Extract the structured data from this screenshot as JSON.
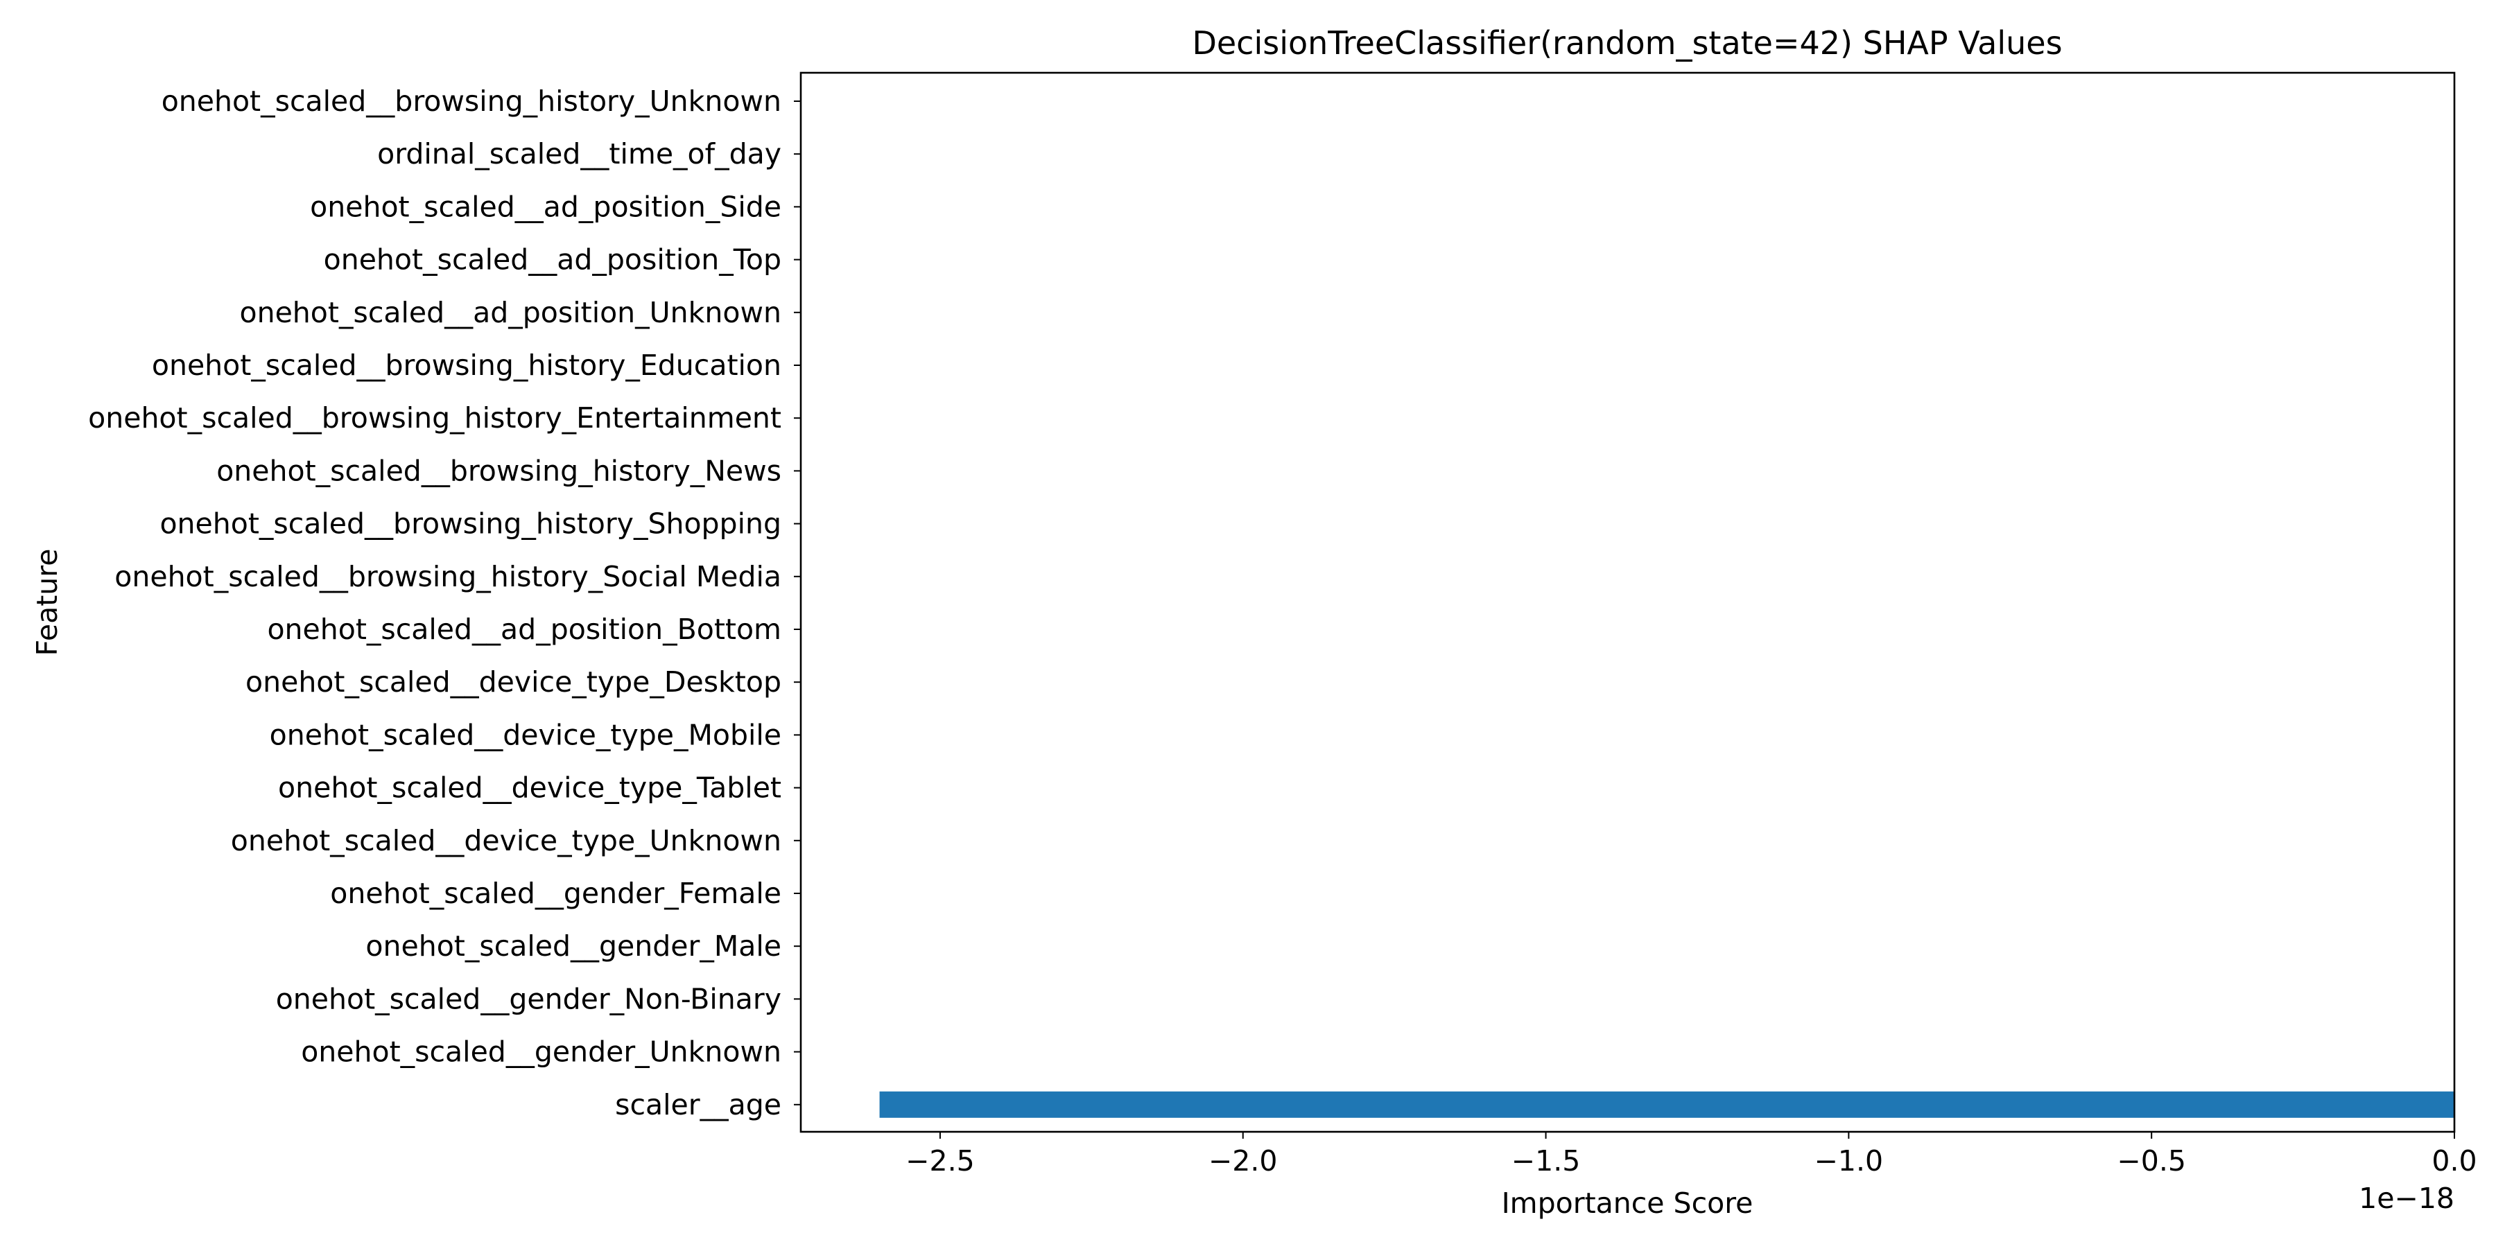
{
  "chart_data": {
    "type": "bar",
    "orientation": "horizontal",
    "title": "DecisionTreeClassifier(random_state=42) SHAP Values",
    "xlabel": "Importance Score",
    "ylabel": "Feature",
    "x_offset_label": "1e−18",
    "x_scale": 1e-18,
    "xlim": [
      -2.73,
      0.0
    ],
    "xticks": [
      -2.5,
      -2.0,
      -1.5,
      -1.0,
      -0.5,
      0.0
    ],
    "xtick_labels": [
      "−2.5",
      "−2.0",
      "−1.5",
      "−1.0",
      "−0.5",
      "0.0"
    ],
    "grid": false,
    "bar_color": "#1f77b4",
    "categories": [
      "onehot_scaled__browsing_history_Unknown",
      "ordinal_scaled__time_of_day",
      "onehot_scaled__ad_position_Side",
      "onehot_scaled__ad_position_Top",
      "onehot_scaled__ad_position_Unknown",
      "onehot_scaled__browsing_history_Education",
      "onehot_scaled__browsing_history_Entertainment",
      "onehot_scaled__browsing_history_News",
      "onehot_scaled__browsing_history_Shopping",
      "onehot_scaled__browsing_history_Social Media",
      "onehot_scaled__ad_position_Bottom",
      "onehot_scaled__device_type_Desktop",
      "onehot_scaled__device_type_Mobile",
      "onehot_scaled__device_type_Tablet",
      "onehot_scaled__device_type_Unknown",
      "onehot_scaled__gender_Female",
      "onehot_scaled__gender_Male",
      "onehot_scaled__gender_Non-Binary",
      "onehot_scaled__gender_Unknown",
      "scaler__age"
    ],
    "values": [
      0,
      0,
      0,
      0,
      0,
      0,
      0,
      0,
      0,
      0,
      0,
      0,
      0,
      0,
      0,
      0,
      0,
      0,
      0,
      -2.6
    ]
  }
}
